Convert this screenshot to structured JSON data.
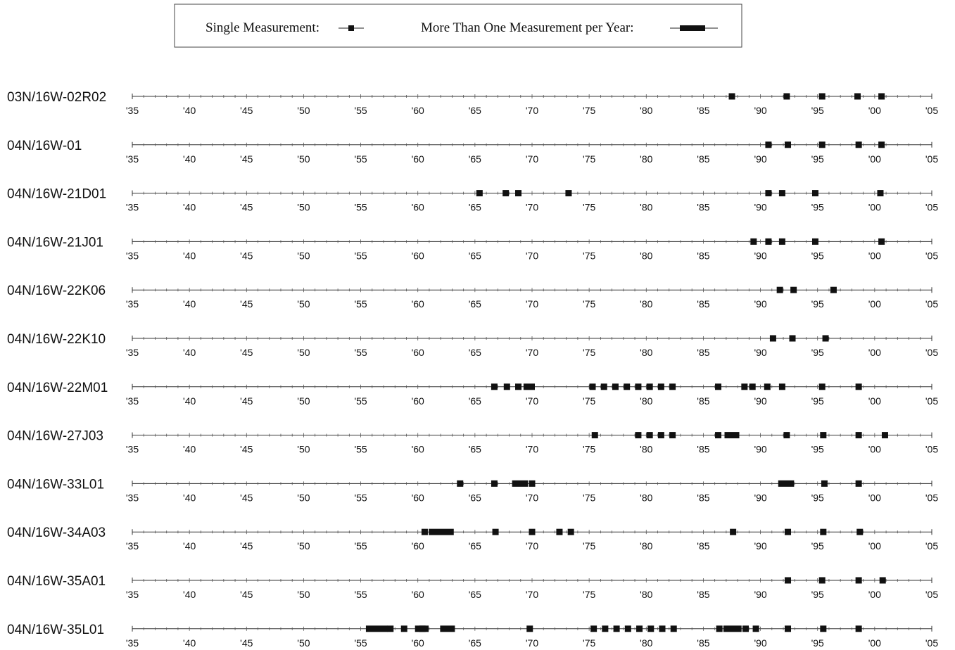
{
  "chart_data": {
    "type": "scatter",
    "title": "",
    "xlabel": "",
    "ylabel": "",
    "x_range": [
      1935,
      2005
    ],
    "x_tick_values": [
      1935,
      1940,
      1945,
      1950,
      1955,
      1960,
      1965,
      1970,
      1975,
      1980,
      1985,
      1990,
      1995,
      2000,
      2005
    ],
    "x_tick_labels": [
      "'35",
      "'40",
      "'45",
      "'50",
      "'55",
      "'60",
      "'65",
      "'70",
      "'75",
      "'80",
      "'85",
      "'90",
      "'95",
      "'00",
      "'05"
    ],
    "grid": false,
    "legend_position": "top-center",
    "legend": [
      {
        "label": "Single Measurement:",
        "marker": "single"
      },
      {
        "label": "More Than One Measurement per Year:",
        "marker": "multi"
      }
    ],
    "series": [
      {
        "name": "03N/16W-02R02",
        "single": [
          1987.5,
          1992.3,
          1995.4,
          1998.5,
          2000.6
        ],
        "multi": []
      },
      {
        "name": "04N/16W-01",
        "single": [
          1990.7,
          1992.4,
          1995.4,
          1998.6,
          2000.6
        ],
        "multi": []
      },
      {
        "name": "04N/16W-21D01",
        "single": [
          1965.4,
          1967.7,
          1968.8,
          1973.2,
          1990.7,
          1991.9,
          1994.8,
          2000.5
        ],
        "multi": []
      },
      {
        "name": "04N/16W-21J01",
        "single": [
          1989.4,
          1990.7,
          1991.9,
          1994.8,
          2000.6
        ],
        "multi": []
      },
      {
        "name": "04N/16W-22K06",
        "single": [
          1991.7,
          1992.9,
          1996.4
        ],
        "multi": []
      },
      {
        "name": "04N/16W-22K10",
        "single": [
          1991.1,
          1992.8,
          1995.7
        ],
        "multi": []
      },
      {
        "name": "04N/16W-22M01",
        "single": [
          1966.7,
          1967.8,
          1968.8,
          1975.3,
          1976.3,
          1977.3,
          1978.3,
          1979.3,
          1980.3,
          1981.3,
          1982.3,
          1986.3,
          1988.6,
          1989.3,
          1990.6,
          1991.9,
          1995.4,
          1998.6
        ],
        "multi": [
          [
            1969.5,
            1970.0
          ]
        ]
      },
      {
        "name": "04N/16W-27J03",
        "single": [
          1975.5,
          1979.3,
          1980.3,
          1981.3,
          1982.3,
          1986.3,
          1992.3,
          1995.5,
          1998.6,
          2000.9
        ],
        "multi": [
          [
            1987.1,
            1987.9
          ]
        ]
      },
      {
        "name": "04N/16W-33L01",
        "single": [
          1963.7,
          1966.7,
          1970.0,
          1995.6,
          1998.6
        ],
        "multi": [
          [
            1968.5,
            1969.4
          ],
          [
            1991.8,
            1992.7
          ]
        ]
      },
      {
        "name": "04N/16W-34A03",
        "single": [
          1960.6,
          1966.8,
          1970.0,
          1972.4,
          1973.4,
          1987.6,
          1992.4,
          1995.5,
          1998.7
        ],
        "multi": [
          [
            1961.2,
            1962.9
          ]
        ]
      },
      {
        "name": "04N/16W-35A01",
        "single": [
          1992.4,
          1995.4,
          1998.6,
          2000.7
        ],
        "multi": []
      },
      {
        "name": "04N/16W-35L01",
        "single": [
          1957.6,
          1958.8,
          1960.4,
          1969.8,
          1975.4,
          1976.4,
          1977.4,
          1978.4,
          1979.4,
          1980.4,
          1981.4,
          1982.4,
          1986.4,
          1988.7,
          1989.6,
          1992.4,
          1995.5,
          1998.6
        ],
        "multi": [
          [
            1955.7,
            1957.1
          ],
          [
            1960.0,
            1960.7
          ],
          [
            1962.2,
            1963.0
          ],
          [
            1987.0,
            1988.1
          ]
        ]
      }
    ]
  }
}
